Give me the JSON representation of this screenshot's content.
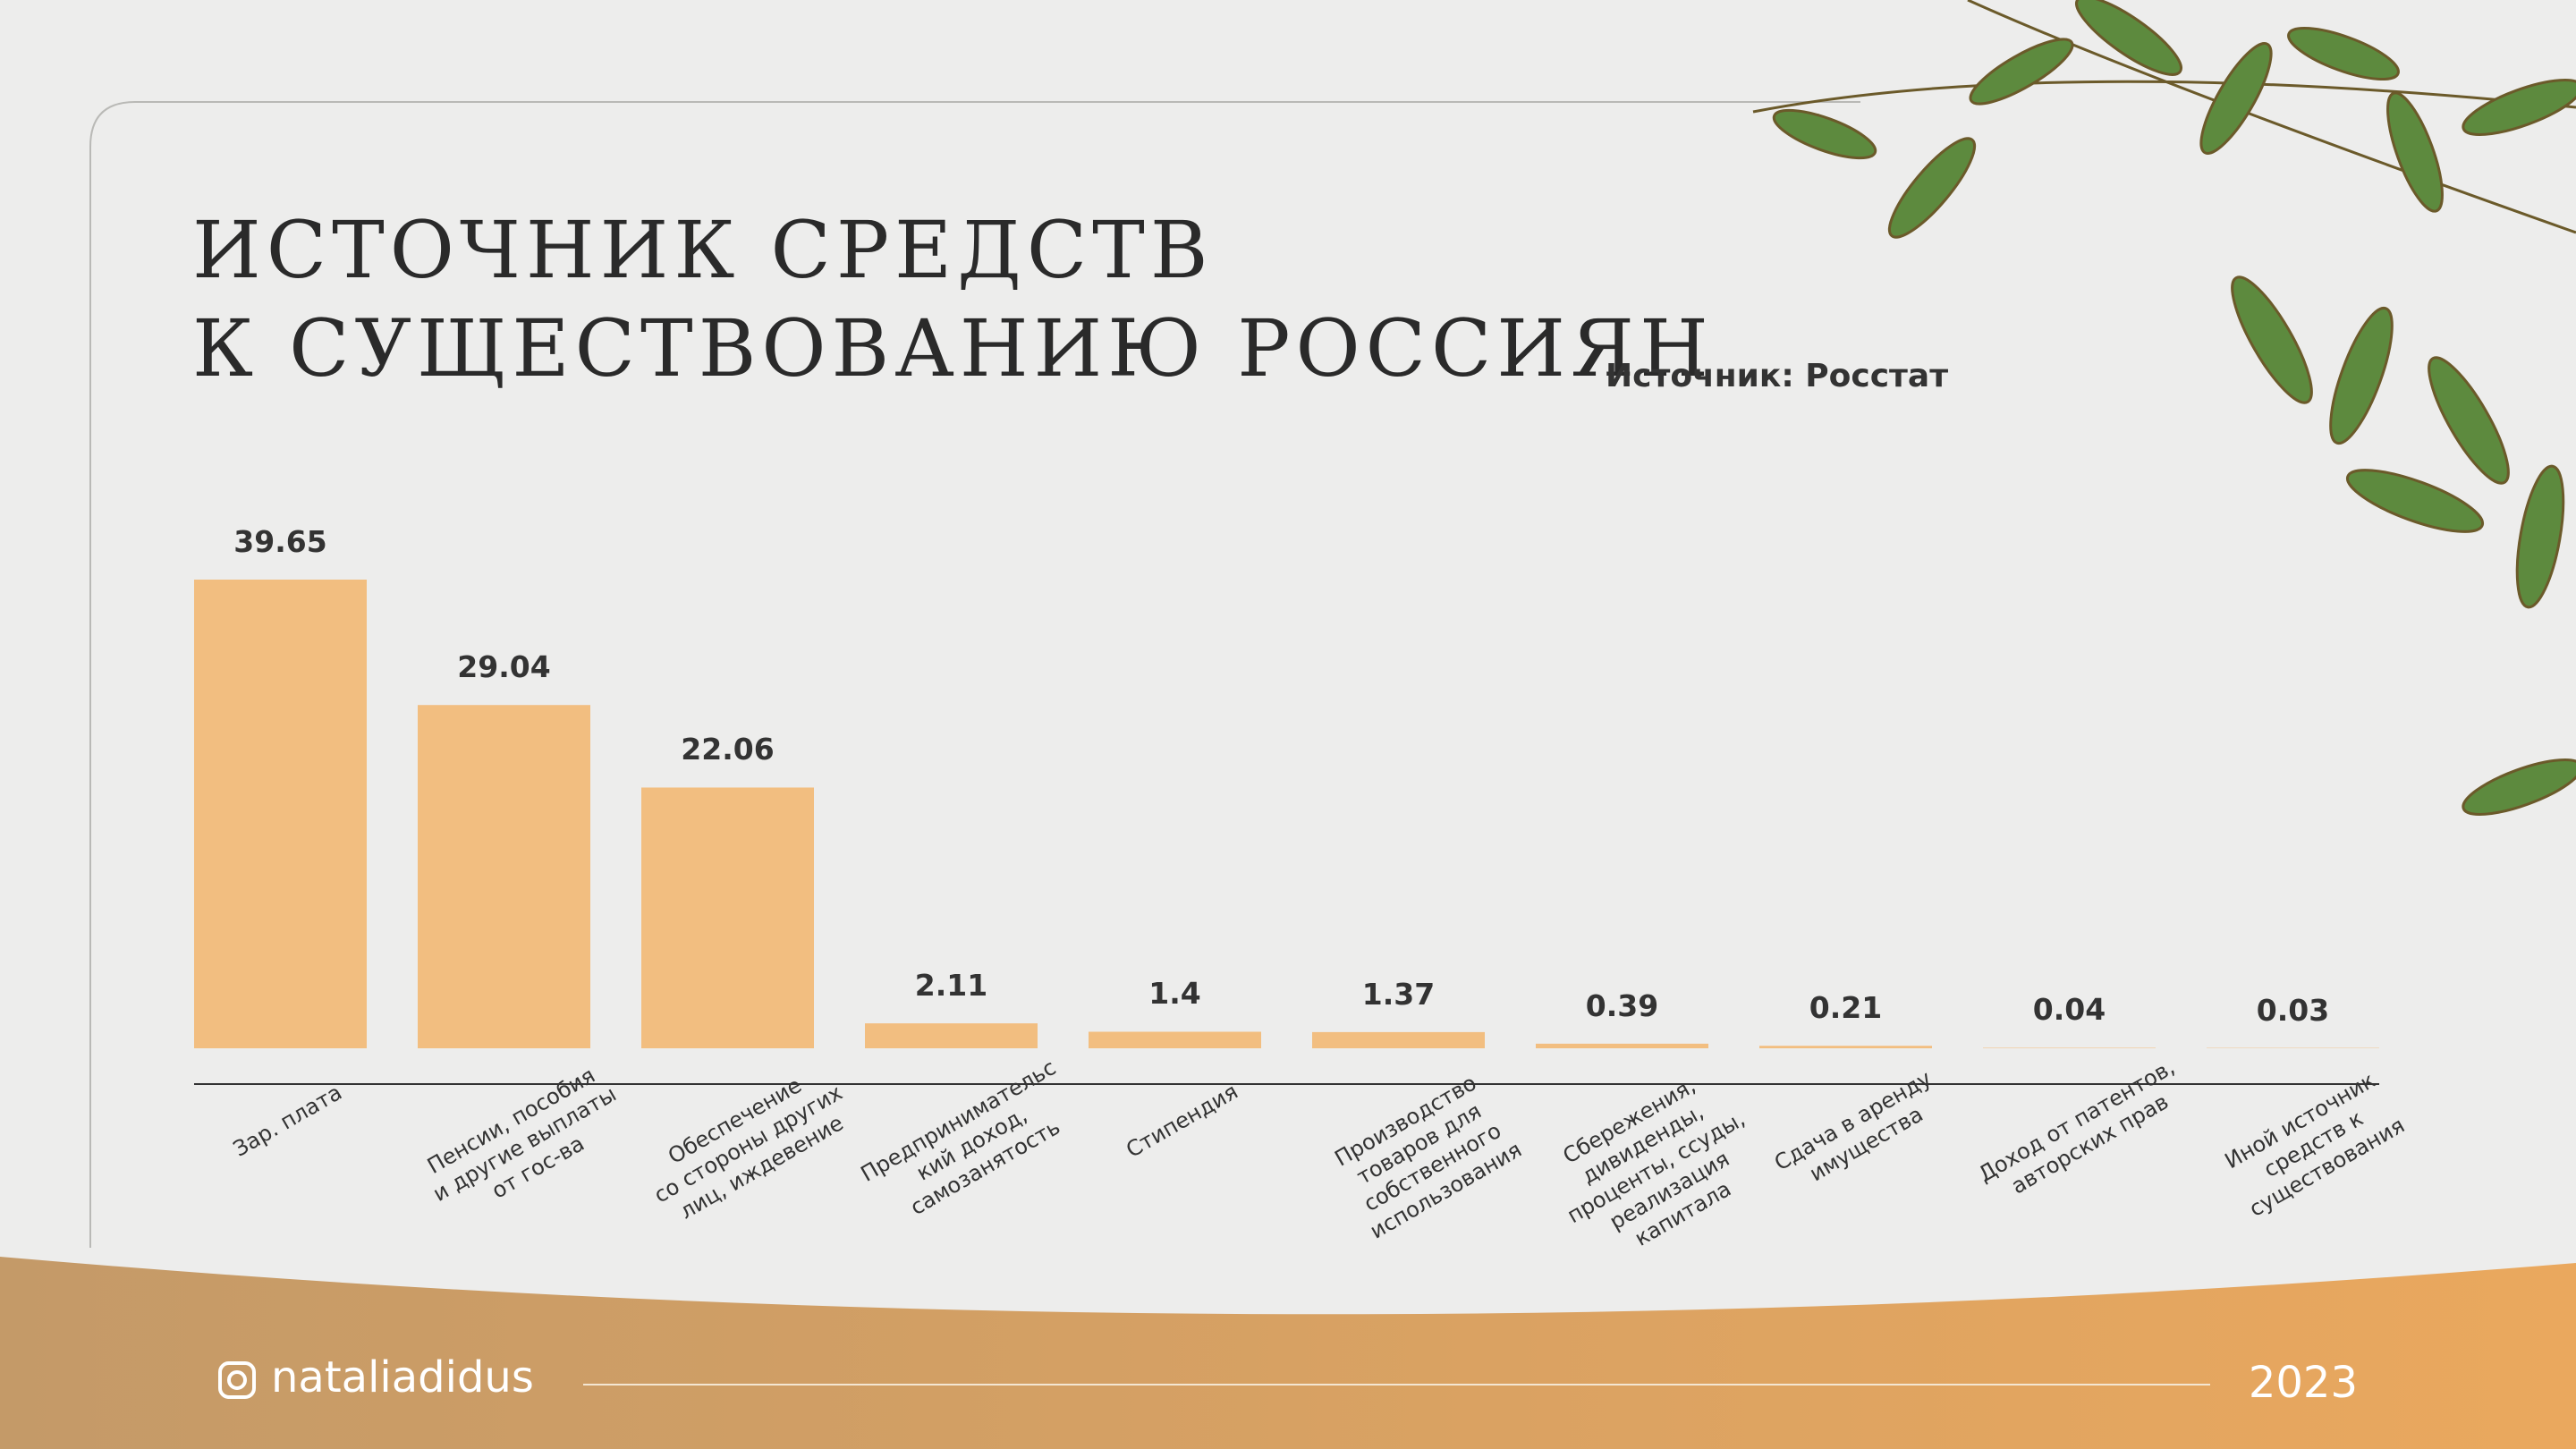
{
  "chart_data": {
    "type": "bar",
    "title": "ИСТОЧНИК СРЕДСТВ\nК СУЩЕСТВОВАНИЮ РОССИЯН",
    "source": "Источник: Росстат",
    "categories": [
      "Зар. плата",
      "Пенсии, пособия\nи другие выплаты\nот гос-ва",
      "Обеспечение\nсо стороны других\nлиц, иждевение",
      "Предпринимательс\nкий доход,\nсамозанятость",
      "Стипендия",
      "Производство\nтоваров для\nсобственного\nиспользования",
      "Сбережения,\nдивиденды,\nпроценты, ссуды,\nреализация\nкапитала",
      "Сдача в аренду\nимущества",
      "Доход от патентов,\nавторских прав",
      "Иной источник\nсредств к\nсуществования"
    ],
    "values": [
      39.65,
      29.04,
      22.06,
      2.11,
      1.4,
      1.37,
      0.39,
      0.21,
      0.04,
      0.03
    ],
    "color": "#f2be80"
  },
  "footer": {
    "handle": "nataliadidus",
    "year": "2023"
  }
}
